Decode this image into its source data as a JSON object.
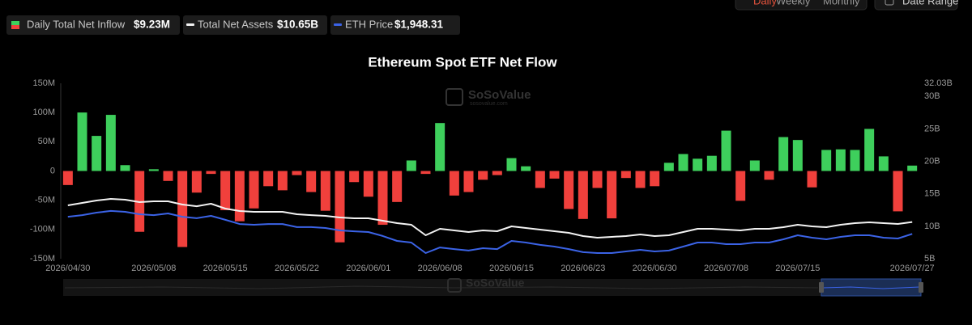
{
  "toolbar": {
    "periods": [
      "Daily",
      "Weekly",
      "Monthly"
    ],
    "date_range": "Date Range"
  },
  "watermark": {
    "brand": "SoSoValue",
    "site": "sosovalue.com"
  },
  "chart_data": {
    "type": "bar",
    "title": "Ethereum Spot ETF Net Flow",
    "categories": [
      "2026/04/30",
      null,
      null,
      null,
      null,
      null,
      "2026/05/08",
      null,
      null,
      null,
      null,
      "2026/05/15",
      null,
      null,
      null,
      null,
      "2026/05/22",
      null,
      null,
      null,
      null,
      "2026/06/01",
      null,
      null,
      null,
      null,
      "2026/06/08",
      null,
      null,
      null,
      null,
      "2026/06/15",
      null,
      null,
      null,
      null,
      "2026/06/23",
      null,
      null,
      null,
      null,
      "2026/06/30",
      null,
      null,
      null,
      null,
      "2026/07/08",
      null,
      null,
      null,
      null,
      "2026/07/15",
      null,
      null,
      null,
      null,
      null,
      null,
      null,
      "2026/07/27"
    ],
    "series": [
      {
        "name": "Daily Total Net Inflow",
        "latest_label": "$9.23M",
        "type": "bar",
        "positive_color": "#3ecf5c",
        "negative_color": "#f0403c",
        "values": [
          -24,
          100,
          60,
          96,
          10,
          -104,
          3,
          -17,
          -130,
          -37,
          -5,
          -67,
          -86,
          -64,
          -26,
          -33,
          -7,
          -36,
          -68,
          -122,
          -19,
          -44,
          -92,
          -53,
          18,
          -5,
          82,
          -42,
          -36,
          -15,
          -7,
          22,
          8,
          -29,
          -13,
          -65,
          -82,
          -29,
          -81,
          -12,
          -29,
          -26,
          14,
          29,
          21,
          26,
          69,
          -51,
          18,
          -15,
          58,
          53,
          -28,
          36,
          37,
          36,
          72,
          25,
          -69,
          9.23
        ]
      },
      {
        "name": "Total Net Assets",
        "latest_label": "$10.65B",
        "type": "line",
        "axis": "y2",
        "color": "#f2f2f2",
        "values": [
          13.22,
          13.59,
          13.97,
          14.22,
          14.09,
          13.72,
          13.84,
          13.84,
          13.34,
          13.09,
          13.47,
          12.72,
          12.35,
          12.22,
          12.22,
          12.22,
          11.85,
          11.72,
          11.6,
          11.35,
          11.23,
          11.23,
          10.85,
          10.48,
          10.23,
          8.61,
          9.61,
          9.36,
          9.11,
          9.36,
          9.23,
          9.98,
          9.73,
          9.48,
          9.23,
          8.99,
          8.49,
          8.24,
          8.36,
          8.49,
          8.74,
          8.49,
          8.61,
          9.11,
          9.61,
          9.61,
          9.48,
          9.36,
          9.61,
          9.61,
          9.86,
          10.23,
          9.98,
          9.86,
          10.23,
          10.48,
          10.6,
          10.48,
          10.35,
          10.65
        ]
      },
      {
        "name": "ETH Price",
        "latest_label": "$1,948.31",
        "type": "line",
        "axis": "y3",
        "color": "#3b63e6",
        "values": [
          2085,
          2098,
          2118,
          2131,
          2124,
          2105,
          2098,
          2111,
          2085,
          2073,
          2092,
          2060,
          2027,
          2021,
          2027,
          2027,
          2002,
          2002,
          1995,
          1976,
          1969,
          1963,
          1931,
          1892,
          1879,
          1795,
          1840,
          1827,
          1815,
          1834,
          1827,
          1892,
          1879,
          1860,
          1847,
          1827,
          1802,
          1795,
          1795,
          1808,
          1821,
          1808,
          1815,
          1847,
          1879,
          1879,
          1866,
          1866,
          1879,
          1879,
          1905,
          1937,
          1918,
          1905,
          1924,
          1937,
          1937,
          1918,
          1911,
          1948.31
        ]
      }
    ],
    "ylim": [
      -150,
      150
    ],
    "yticks": [
      {
        "value": -150,
        "label": "-150M"
      },
      {
        "value": -100,
        "label": "-100M"
      },
      {
        "value": -50,
        "label": "-50M"
      },
      0,
      {
        "value": 50,
        "label": "50M"
      },
      {
        "value": 100,
        "label": "100M"
      },
      {
        "value": 150,
        "label": "150M"
      }
    ],
    "y2lim": [
      5,
      32.03
    ],
    "y2ticks": [
      {
        "value": 5,
        "label": "5B"
      },
      {
        "value": 10,
        "label": "10B"
      },
      {
        "value": 15,
        "label": "15B"
      },
      {
        "value": 20,
        "label": "20B"
      },
      {
        "value": 25,
        "label": "25B"
      },
      {
        "value": 30,
        "label": "30B"
      },
      {
        "value": 32.03,
        "label": "32.03B"
      }
    ],
    "y3lim": [
      1750,
      3150
    ],
    "grid": false
  }
}
